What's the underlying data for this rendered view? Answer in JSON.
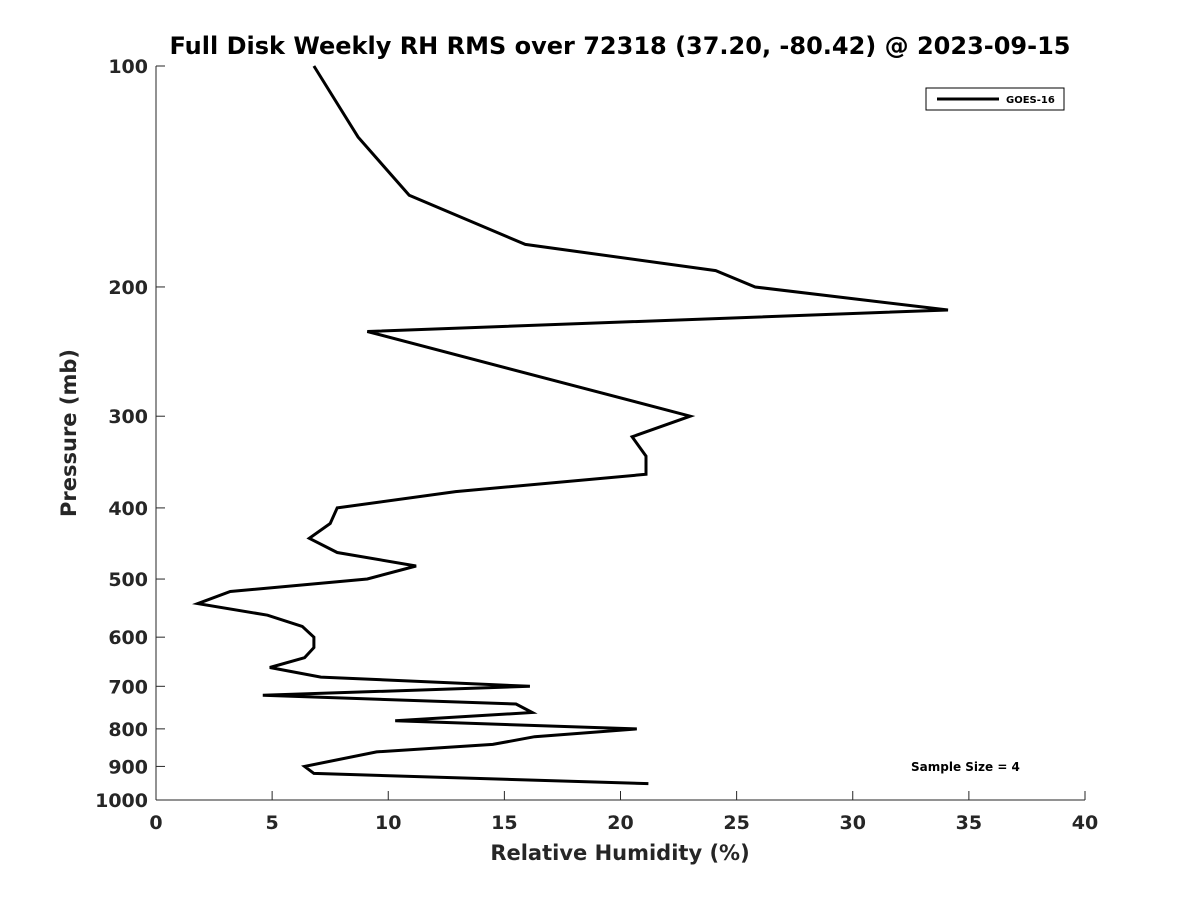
{
  "chart_data": {
    "type": "line",
    "title": "Full Disk Weekly RH RMS over 72318 (37.20, -80.42) @ 2023-09-15",
    "xlabel": "Relative Humidity (%)",
    "ylabel": "Pressure (mb)",
    "xlim": [
      0,
      40
    ],
    "ylim": [
      100,
      1000
    ],
    "y_scale": "log",
    "y_reversed": true,
    "x_ticks": [
      "0",
      "5",
      "10",
      "15",
      "20",
      "25",
      "30",
      "35",
      "40"
    ],
    "y_ticks": [
      "100",
      "200",
      "300",
      "400",
      "500",
      "600",
      "700",
      "800",
      "900",
      "1000"
    ],
    "grid": false,
    "legend": {
      "placement": "top-right",
      "entries": [
        "GOES-16"
      ]
    },
    "annotation": "Sample Size = 4",
    "series": [
      {
        "name": "GOES-16",
        "color": "#000000",
        "points": [
          {
            "x": 6.8,
            "p": 100
          },
          {
            "x": 8.7,
            "p": 125
          },
          {
            "x": 10.9,
            "p": 150
          },
          {
            "x": 15.9,
            "p": 175
          },
          {
            "x": 24.1,
            "p": 190
          },
          {
            "x": 25.8,
            "p": 200
          },
          {
            "x": 34.1,
            "p": 215
          },
          {
            "x": 9.1,
            "p": 230
          },
          {
            "x": 23.0,
            "p": 300
          },
          {
            "x": 20.5,
            "p": 320
          },
          {
            "x": 21.1,
            "p": 340
          },
          {
            "x": 21.1,
            "p": 360
          },
          {
            "x": 12.9,
            "p": 380
          },
          {
            "x": 7.8,
            "p": 400
          },
          {
            "x": 7.5,
            "p": 420
          },
          {
            "x": 6.6,
            "p": 440
          },
          {
            "x": 7.8,
            "p": 460
          },
          {
            "x": 11.2,
            "p": 480
          },
          {
            "x": 9.1,
            "p": 500
          },
          {
            "x": 3.2,
            "p": 520
          },
          {
            "x": 1.8,
            "p": 540
          },
          {
            "x": 4.8,
            "p": 560
          },
          {
            "x": 6.3,
            "p": 580
          },
          {
            "x": 6.8,
            "p": 600
          },
          {
            "x": 6.8,
            "p": 620
          },
          {
            "x": 6.4,
            "p": 640
          },
          {
            "x": 4.9,
            "p": 660
          },
          {
            "x": 7.1,
            "p": 680
          },
          {
            "x": 16.1,
            "p": 700
          },
          {
            "x": 4.6,
            "p": 720
          },
          {
            "x": 15.5,
            "p": 740
          },
          {
            "x": 16.2,
            "p": 760
          },
          {
            "x": 10.3,
            "p": 780
          },
          {
            "x": 20.7,
            "p": 800
          },
          {
            "x": 16.3,
            "p": 820
          },
          {
            "x": 14.5,
            "p": 840
          },
          {
            "x": 9.5,
            "p": 860
          },
          {
            "x": 6.4,
            "p": 900
          },
          {
            "x": 6.8,
            "p": 920
          },
          {
            "x": 21.2,
            "p": 950
          }
        ]
      }
    ]
  }
}
